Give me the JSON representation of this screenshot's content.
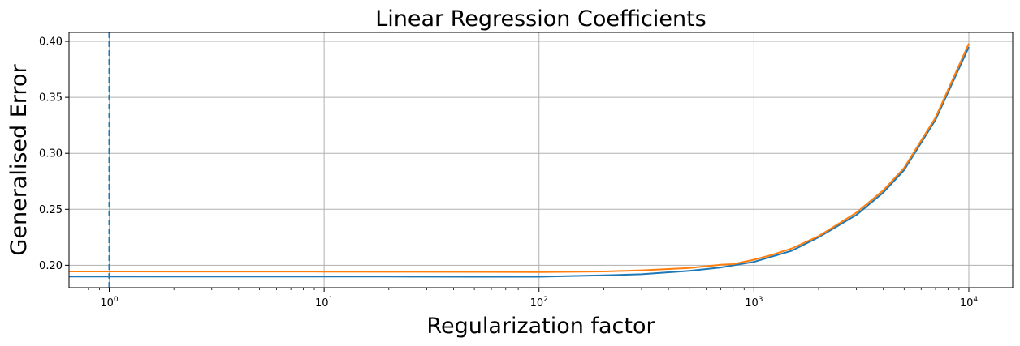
{
  "chart_data": {
    "type": "line",
    "title": "Linear Regression Coefficients",
    "xlabel": "Regularization factor",
    "ylabel": "Generalised Error",
    "xscale": "log",
    "xlim": [
      0.65,
      16000
    ],
    "ylim": [
      0.18,
      0.408
    ],
    "grid": true,
    "x_ticks": [
      {
        "value": 1,
        "base": "10",
        "exp": "0"
      },
      {
        "value": 10,
        "base": "10",
        "exp": "1"
      },
      {
        "value": 100,
        "base": "10",
        "exp": "2"
      },
      {
        "value": 1000,
        "base": "10",
        "exp": "3"
      },
      {
        "value": 10000,
        "base": "10",
        "exp": "4"
      }
    ],
    "y_ticks": [
      {
        "value": 0.2,
        "label": "0.20"
      },
      {
        "value": 0.25,
        "label": "0.25"
      },
      {
        "value": 0.3,
        "label": "0.30"
      },
      {
        "value": 0.35,
        "label": "0.35"
      },
      {
        "value": 0.4,
        "label": "0.40"
      }
    ],
    "vline": {
      "x": 1,
      "color": "#1f77b4",
      "style": "dashed"
    },
    "series": [
      {
        "color": "#1f77b4",
        "x": [
          0.65,
          1,
          2,
          5,
          10,
          20,
          50,
          100,
          200,
          300,
          500,
          700,
          1000,
          1500,
          2000,
          3000,
          4000,
          5000,
          7000,
          10000
        ],
        "y": [
          0.19,
          0.19,
          0.19,
          0.19,
          0.1899,
          0.1899,
          0.1898,
          0.1898,
          0.191,
          0.192,
          0.195,
          0.198,
          0.203,
          0.213,
          0.225,
          0.245,
          0.265,
          0.285,
          0.33,
          0.395
        ]
      },
      {
        "color": "#ff7f0e",
        "x": [
          0.65,
          1,
          2,
          5,
          10,
          20,
          50,
          100,
          200,
          300,
          500,
          700,
          800,
          1000,
          1200,
          1500,
          2000,
          3000,
          4000,
          5000,
          7000,
          10000
        ],
        "y": [
          0.1945,
          0.1945,
          0.1944,
          0.1944,
          0.1943,
          0.1942,
          0.1941,
          0.194,
          0.1945,
          0.1955,
          0.1975,
          0.2005,
          0.201,
          0.205,
          0.209,
          0.215,
          0.226,
          0.247,
          0.267,
          0.287,
          0.332,
          0.398
        ]
      }
    ]
  }
}
